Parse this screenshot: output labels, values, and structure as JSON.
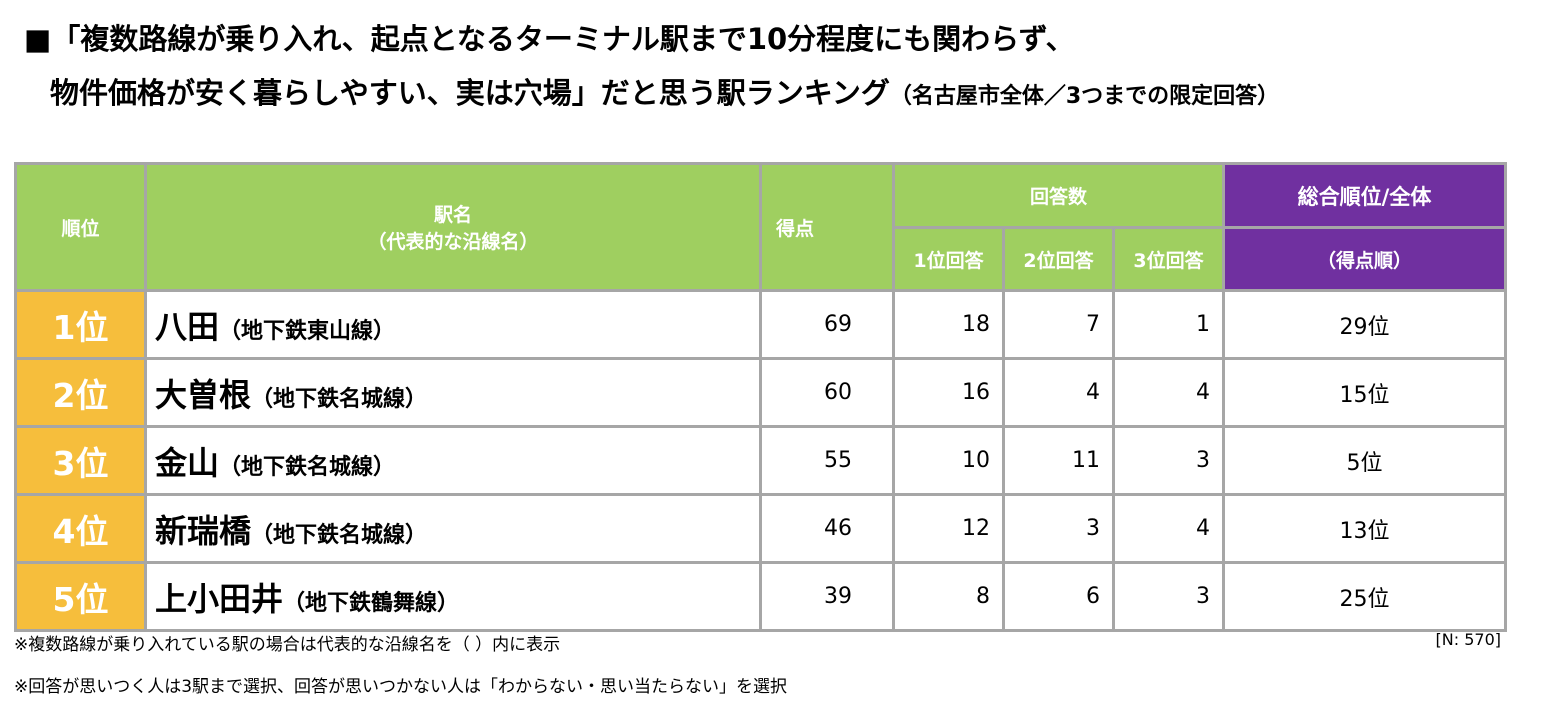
{
  "title": {
    "line1": "■「複数路線が乗り入れ、起点となるターミナル駅まで10分程度にも関わらず、",
    "line2_main": "物件価格が安く暮らしやすい、実は穴場」だと思う駅ランキング",
    "line2_note": "（名古屋市全体／3つまでの限定回答）"
  },
  "headers": {
    "rank": "順位",
    "station": "駅名",
    "station_sub": "（代表的な沿線名）",
    "score": "得点",
    "answers": "回答数",
    "first": "1位回答",
    "second": "2位回答",
    "third": "3位回答",
    "overall": "総合順位/全体",
    "overall_sub": "（得点順）"
  },
  "rows": [
    {
      "rank": "1位",
      "station": "八田",
      "line": "（地下鉄東山線）",
      "score": "69",
      "first": "18",
      "second": "7",
      "third": "1",
      "overall": "29位"
    },
    {
      "rank": "2位",
      "station": "大曽根",
      "line": "（地下鉄名城線）",
      "score": "60",
      "first": "16",
      "second": "4",
      "third": "4",
      "overall": "15位"
    },
    {
      "rank": "3位",
      "station": "金山",
      "line": "（地下鉄名城線）",
      "score": "55",
      "first": "10",
      "second": "11",
      "third": "3",
      "overall": "5位"
    },
    {
      "rank": "4位",
      "station": "新瑞橋",
      "line": "（地下鉄名城線）",
      "score": "46",
      "first": "12",
      "second": "3",
      "third": "4",
      "overall": "13位"
    },
    {
      "rank": "5位",
      "station": "上小田井",
      "line": "（地下鉄鶴舞線）",
      "score": "39",
      "first": "8",
      "second": "6",
      "third": "3",
      "overall": "25位"
    }
  ],
  "notes": {
    "note1": "※複数路線が乗り入れている駅の場合は代表的な沿線名を（ ）内に表示",
    "note2": "※回答が思いつく人は3駅まで選択、回答が思いつかない人は「わからない・思い当たらない」を選択",
    "n": "[N:  570]"
  },
  "colors": {
    "header_green": "#9fcf60",
    "header_purple": "#7030a0",
    "rank_orange": "#f6be3c",
    "border_gray": "#a6a6a6"
  }
}
